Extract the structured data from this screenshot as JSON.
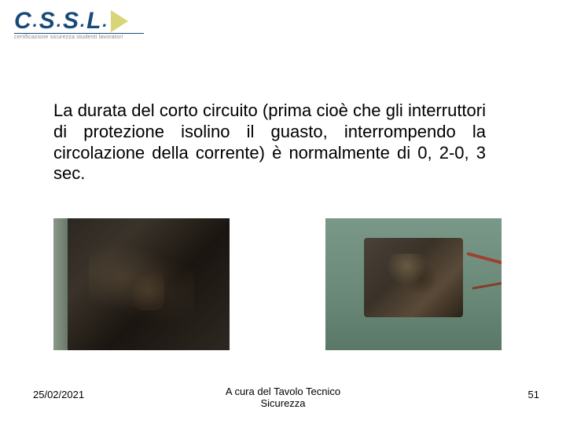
{
  "logo": {
    "text_c": "C",
    "text_s": "S",
    "text_s2": "S",
    "text_l": "L",
    "subtitle": "certificazione sicurezza studenti lavoratori"
  },
  "paragraph": "La durata del corto circuito (prima cioè che gli interruttori di protezione isolino il guasto, interrompendo la circolazione della corrente) è normalmente di 0, 2-0, 3 sec.",
  "images": {
    "left_alt": "damaged-panel-burnt",
    "right_alt": "damaged-electrical-box"
  },
  "footer": {
    "date": "25/02/2021",
    "credit_line1": "A cura del Tavolo Tecnico",
    "credit_line2": "Sicurezza",
    "page_number": "51"
  },
  "colors": {
    "logo_blue": "#1a4a7a",
    "logo_arrow": "#d8d478",
    "text": "#000000",
    "background": "#ffffff"
  }
}
